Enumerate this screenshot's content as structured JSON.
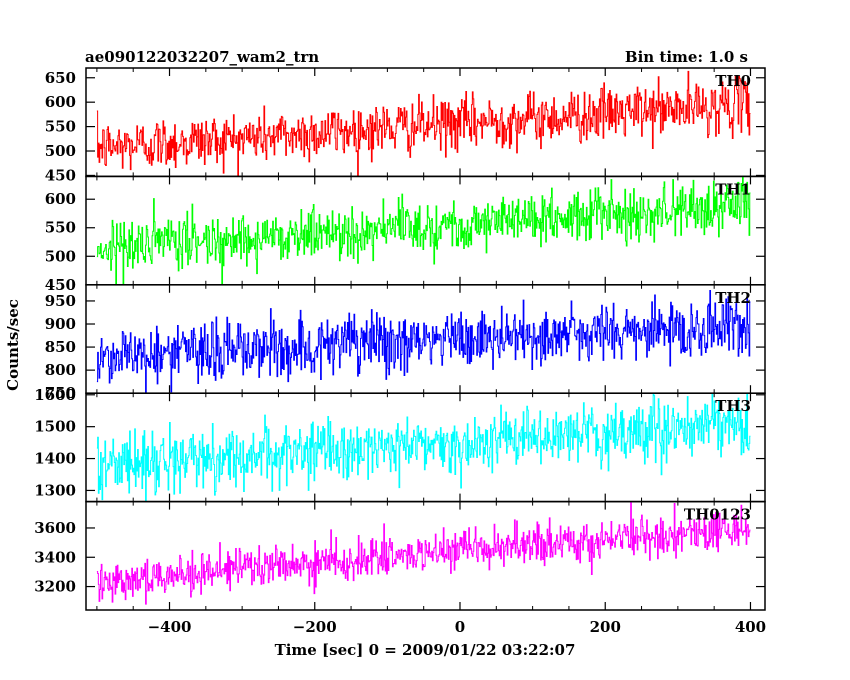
{
  "chart_data": {
    "type": "line",
    "title_left": "ae090122032207_wam2_trn",
    "title_right": "Bin time: 1.0 s",
    "xlabel": "Time [sec] 0 = 2009/01/22 03:22:07",
    "ylabel": "Counts/sec",
    "xlim": [
      -515,
      420
    ],
    "x_ticks": [
      -400,
      -200,
      0,
      200,
      400
    ],
    "x_tick_labels": [
      "−400",
      "−200",
      "0",
      "200",
      "400"
    ],
    "bin_time": 1.0,
    "x_start": -500,
    "x_end": 399,
    "grid": false,
    "panels": [
      {
        "name": "TH0",
        "color": "#ff0000",
        "ylim": [
          448,
          670
        ],
        "y_ticks": [
          450,
          500,
          550,
          600,
          650
        ],
        "y_tick_labels": [
          "450",
          "500",
          "550",
          "600",
          "650"
        ],
        "trend_start": 507,
        "trend_end": 596,
        "noise": 27
      },
      {
        "name": "TH1",
        "color": "#00ff00",
        "ylim": [
          450,
          640
        ],
        "y_ticks": [
          450,
          500,
          550,
          600
        ],
        "y_tick_labels": [
          "450",
          "500",
          "550",
          "600"
        ],
        "trend_start": 515,
        "trend_end": 590,
        "noise": 23
      },
      {
        "name": "TH2",
        "color": "#0000ff",
        "ylim": [
          750,
          985
        ],
        "y_ticks": [
          750,
          800,
          850,
          900,
          950
        ],
        "y_tick_labels": [
          "750",
          "800",
          "850",
          "900",
          "950"
        ],
        "trend_start": 830,
        "trend_end": 895,
        "noise": 33
      },
      {
        "name": "TH3",
        "color": "#00ffff",
        "ylim": [
          1265,
          1605
        ],
        "y_ticks": [
          1300,
          1400,
          1500,
          1600
        ],
        "y_tick_labels": [
          "1300",
          "1400",
          "1500",
          "1600"
        ],
        "trend_start": 1380,
        "trend_end": 1505,
        "noise": 46
      },
      {
        "name": "TH0123",
        "color": "#ff00ff",
        "ylim": [
          3040,
          3780
        ],
        "y_ticks": [
          3200,
          3400,
          3600
        ],
        "y_tick_labels": [
          "3200",
          "3400",
          "3600"
        ],
        "trend_start": 3240,
        "trend_end": 3600,
        "noise": 68
      }
    ]
  }
}
